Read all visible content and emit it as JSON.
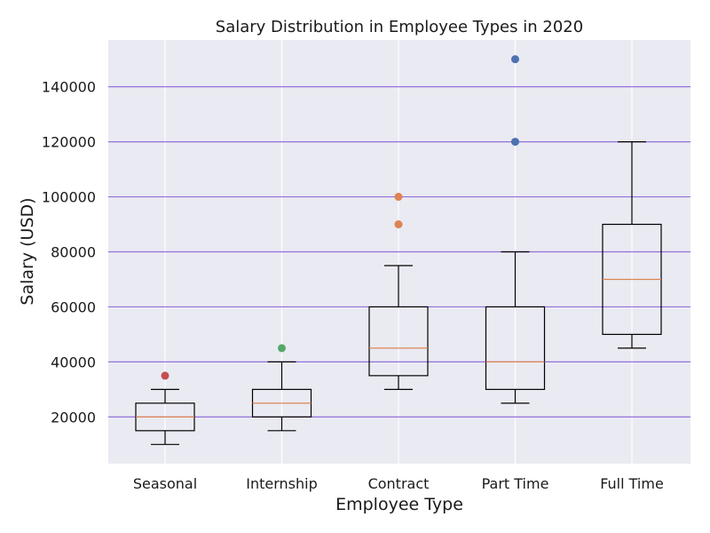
{
  "chart_data": {
    "type": "boxplot",
    "title": "Salary Distribution in Employee Types in 2020",
    "xlabel": "Employee Type",
    "ylabel": "Salary (USD)",
    "ylim": [
      3000,
      157000
    ],
    "yticks": [
      20000,
      40000,
      60000,
      80000,
      100000,
      120000,
      140000
    ],
    "grid": {
      "horizontal": true,
      "horizontal_color": "#9370DB",
      "vertical": true,
      "vertical_color": "#ffffff"
    },
    "colors": {
      "plot_background": "#EAEAF2",
      "box_edge": "#000000",
      "median": "#DD8452",
      "outliers": [
        "#C44E52",
        "#55A868",
        "#DD8452",
        "#4C72B0"
      ]
    },
    "categories": [
      "Seasonal",
      "Internship",
      "Contract",
      "Part Time",
      "Full Time"
    ],
    "boxes": [
      {
        "category": "Seasonal",
        "whisker_low": 10000,
        "q1": 15000,
        "median": 20000,
        "q3": 25000,
        "whisker_high": 30000,
        "outliers": [
          35000
        ],
        "outlier_color": "#C44E52"
      },
      {
        "category": "Internship",
        "whisker_low": 15000,
        "q1": 20000,
        "median": 25000,
        "q3": 30000,
        "whisker_high": 40000,
        "outliers": [
          45000
        ],
        "outlier_color": "#55A868"
      },
      {
        "category": "Contract",
        "whisker_low": 30000,
        "q1": 35000,
        "median": 45000,
        "q3": 60000,
        "whisker_high": 75000,
        "outliers": [
          90000,
          100000
        ],
        "outlier_color": "#DD8452"
      },
      {
        "category": "Part Time",
        "whisker_low": 25000,
        "q1": 30000,
        "median": 40000,
        "q3": 60000,
        "whisker_high": 80000,
        "outliers": [
          120000,
          150000
        ],
        "outlier_color": "#4C72B0"
      },
      {
        "category": "Full Time",
        "whisker_low": 45000,
        "q1": 50000,
        "median": 70000,
        "q3": 90000,
        "whisker_high": 120000,
        "outliers": [],
        "outlier_color": "#4C72B0"
      }
    ]
  }
}
